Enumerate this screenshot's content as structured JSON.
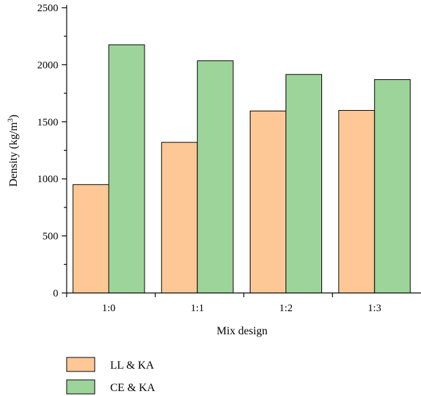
{
  "chart_data": {
    "type": "bar",
    "categories": [
      "1:0",
      "1:1",
      "1:2",
      "1:3"
    ],
    "series": [
      {
        "name": "LL & KA",
        "values": [
          950,
          1320,
          1595,
          1600
        ]
      },
      {
        "name": "CE & KA",
        "values": [
          2175,
          2035,
          1915,
          1870
        ]
      }
    ],
    "xlabel": "Mix design",
    "ylabel": "Density (kg/m",
    "ylabel_superscript": "3",
    "ylabel_suffix": ")",
    "ylim": [
      0,
      2500
    ],
    "yticks": [
      0,
      500,
      1000,
      1500,
      2000,
      2500
    ],
    "grid": false,
    "legend_position": "bottom-left"
  },
  "colors": {
    "series": [
      "#fdc896",
      "#9dd49a"
    ],
    "axis": "#000000"
  }
}
